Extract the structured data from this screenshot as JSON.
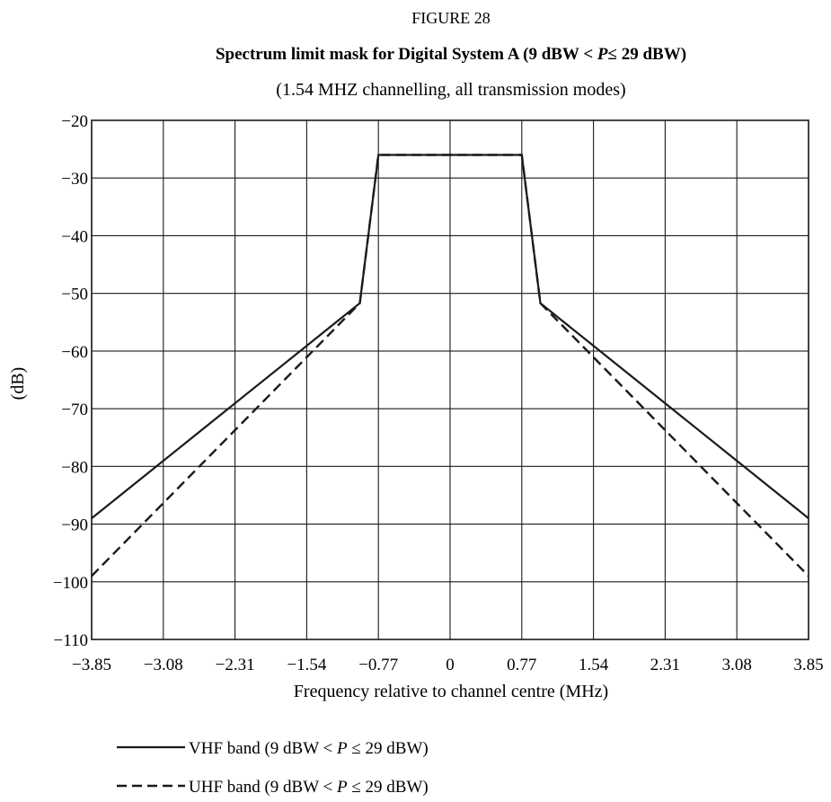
{
  "figure_label": "FIGURE 28",
  "chart_data": {
    "type": "line",
    "title_parts": {
      "before": "Spectrum limit mask for Digital System A (9 dBW < ",
      "italic": "P",
      "after": "≤ 29 dBW)"
    },
    "subtitle": "(1.54 MHZ channelling, all transmission modes)",
    "xlabel": "Frequency relative to channel centre (MHz)",
    "ylabel": "(dB)",
    "xlim": [
      -3.85,
      3.85
    ],
    "ylim": [
      -110,
      -20
    ],
    "grid": true,
    "x_ticks": [
      -3.85,
      -3.08,
      -2.31,
      -1.54,
      -0.77,
      0,
      0.77,
      1.54,
      2.31,
      3.08,
      3.85
    ],
    "x_tick_labels": [
      "−3.85",
      "−3.08",
      "−2.31",
      "−1.54",
      "−0.77",
      "0",
      "0.77",
      "1.54",
      "2.31",
      "3.08",
      "3.85"
    ],
    "y_ticks": [
      -20,
      -30,
      -40,
      -50,
      -60,
      -70,
      -80,
      -90,
      -100,
      -110
    ],
    "y_tick_labels": [
      "−20",
      "−30",
      "−40",
      "−50",
      "−60",
      "−70",
      "−80",
      "−90",
      "−100",
      "−110"
    ],
    "series": [
      {
        "name": "VHF band (9 dBW < P ≤ 29 dBW)",
        "legend_parts": {
          "before": "VHF band (9 dBW < ",
          "italic": "P",
          "after": " ≤ 29 dBW)"
        },
        "style": "solid",
        "color": "#1a1a1a",
        "x": [
          -3.85,
          -0.97,
          -0.77,
          0.77,
          0.97,
          3.85
        ],
        "y": [
          -89,
          -51.7,
          -26,
          -26,
          -51.7,
          -89
        ]
      },
      {
        "name": "UHF band (9 dBW < P ≤ 29 dBW)",
        "legend_parts": {
          "before": "UHF band (9 dBW < ",
          "italic": "P",
          "after": " ≤ 29 dBW)"
        },
        "style": "dashed",
        "color": "#1a1a1a",
        "x": [
          -3.85,
          -0.97,
          -0.77,
          0.77,
          0.97,
          3.85
        ],
        "y": [
          -99,
          -51.7,
          -26,
          -26,
          -51.7,
          -99
        ]
      }
    ],
    "legend_placement": "bottom-left"
  }
}
